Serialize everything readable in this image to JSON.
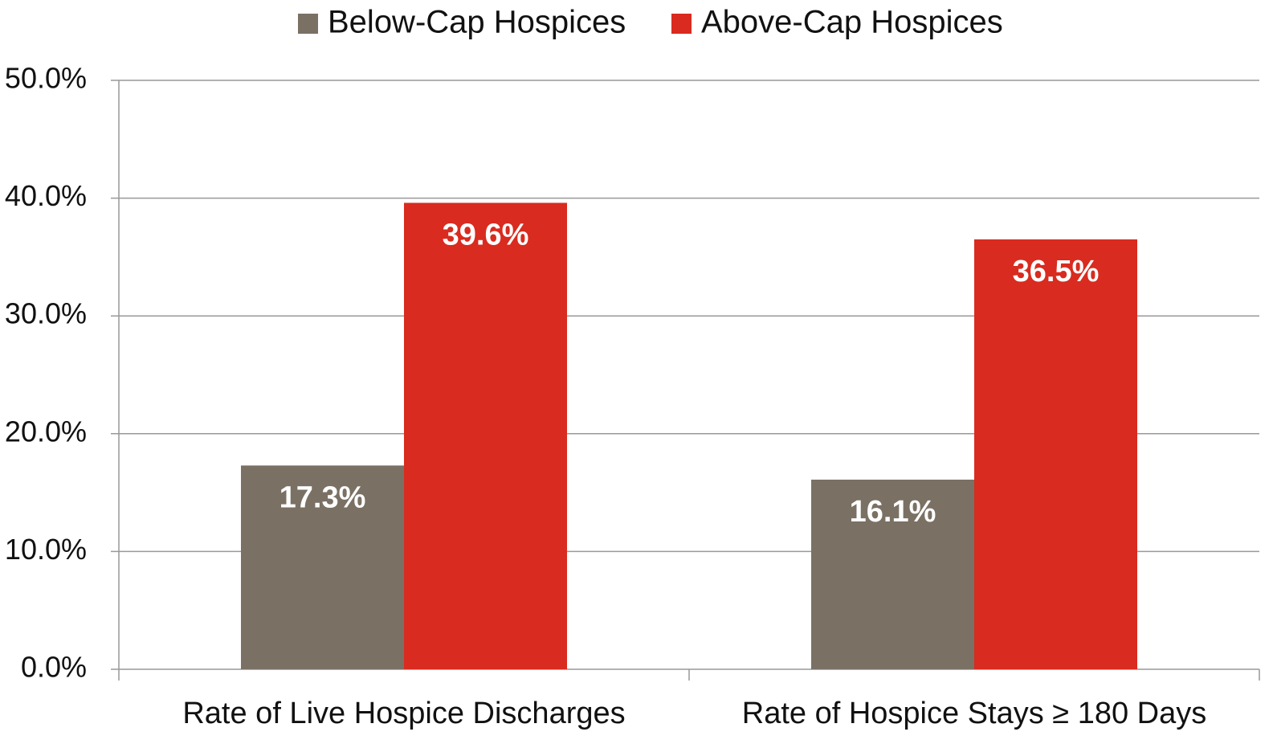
{
  "chart_data": {
    "type": "bar",
    "categories": [
      "Rate of Live Hospice Discharges",
      "Rate of Hospice Stays ≥ 180 Days"
    ],
    "series": [
      {
        "name": "Below-Cap Hospices",
        "color": "#7a7064",
        "values": [
          17.3,
          16.1
        ],
        "value_labels": [
          "17.3%",
          "16.1%"
        ]
      },
      {
        "name": "Above-Cap Hospices",
        "color": "#d92b1f",
        "values": [
          39.6,
          36.5
        ],
        "value_labels": [
          "39.6%",
          "36.5%"
        ]
      }
    ],
    "ylim": [
      0,
      50
    ],
    "yticks": [
      {
        "value": 0,
        "label": "0.0%"
      },
      {
        "value": 10,
        "label": "10.0%"
      },
      {
        "value": 20,
        "label": "20.0%"
      },
      {
        "value": 30,
        "label": "30.0%"
      },
      {
        "value": 40,
        "label": "40.0%"
      },
      {
        "value": 50,
        "label": "50.0%"
      }
    ],
    "grid": true,
    "legend": "top"
  }
}
